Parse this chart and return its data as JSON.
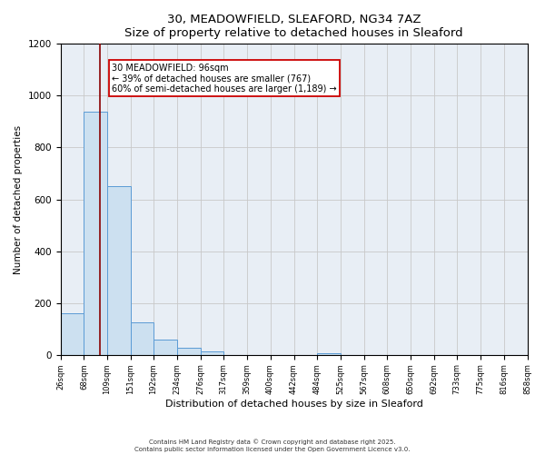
{
  "title": "30, MEADOWFIELD, SLEAFORD, NG34 7AZ",
  "subtitle": "Size of property relative to detached houses in Sleaford",
  "xlabel": "Distribution of detached houses by size in Sleaford",
  "ylabel": "Number of detached properties",
  "bar_edges": [
    26,
    68,
    109,
    151,
    192,
    234,
    276,
    317,
    359,
    400,
    442,
    484,
    525,
    567,
    608,
    650,
    692,
    733,
    775,
    816,
    858
  ],
  "bar_heights": [
    160,
    940,
    650,
    125,
    58,
    28,
    12,
    0,
    0,
    0,
    0,
    6,
    0,
    0,
    0,
    0,
    0,
    0,
    0,
    0
  ],
  "bar_color": "#cce0f0",
  "bar_edge_color": "#5b9bd5",
  "grid_color": "#c8c8c8",
  "bg_color": "#e8eef5",
  "property_line_x": 96,
  "property_line_color": "#8b0000",
  "annotation_line1": "30 MEADOWFIELD: 96sqm",
  "annotation_line2": "← 39% of detached houses are smaller (767)",
  "annotation_line3": "60% of semi-detached houses are larger (1,189) →",
  "annotation_box_color": "#ffffff",
  "annotation_box_edge": "#cc0000",
  "ylim": [
    0,
    1200
  ],
  "yticks": [
    0,
    200,
    400,
    600,
    800,
    1000,
    1200
  ],
  "footer1": "Contains HM Land Registry data © Crown copyright and database right 2025.",
  "footer2": "Contains public sector information licensed under the Open Government Licence v3.0."
}
